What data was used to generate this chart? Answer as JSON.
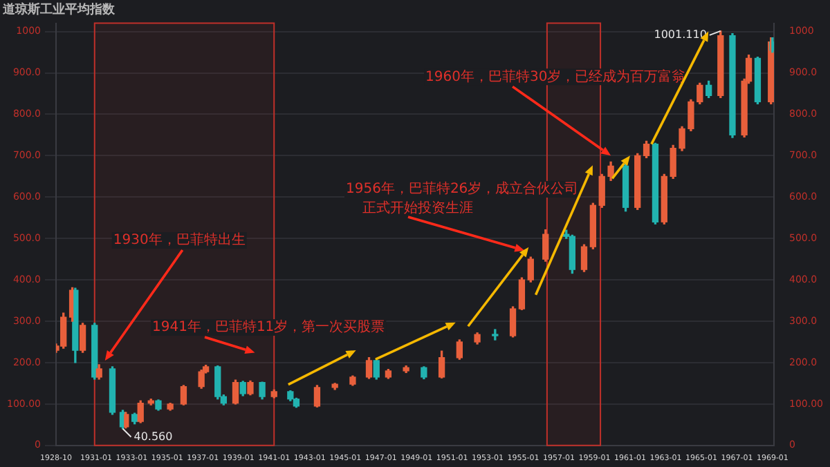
{
  "chart_data": {
    "type": "candlestick",
    "title": "道琼斯工业平均指数",
    "x": [
      "1928-10",
      "1929-03",
      "1929-09",
      "1929-11",
      "1930-04",
      "1930-12",
      "1931-03",
      "1931-12",
      "1932-07",
      "1932-09",
      "1933-03",
      "1933-07",
      "1934-02",
      "1934-07",
      "1935-03",
      "1935-12",
      "1936-12",
      "1937-03",
      "1937-11",
      "1938-03",
      "1938-11",
      "1939-04",
      "1939-09",
      "1940-05",
      "1941-01",
      "1941-12",
      "1942-04",
      "1943-06",
      "1944-06",
      "1945-06",
      "1946-05",
      "1946-10",
      "1947-06",
      "1948-06",
      "1949-06",
      "1950-06",
      "1951-06",
      "1952-06",
      "1953-06",
      "1954-06",
      "1954-12",
      "1955-06",
      "1956-04",
      "1957-06",
      "1957-10",
      "1958-06",
      "1958-12",
      "1959-06",
      "1959-12",
      "1960-10",
      "1961-06",
      "1961-12",
      "1962-06",
      "1962-12",
      "1963-06",
      "1963-12",
      "1964-06",
      "1964-12",
      "1965-06",
      "1966-02",
      "1966-10",
      "1967-06",
      "1967-09",
      "1968-03",
      "1968-12",
      "1969-01"
    ],
    "ohlc": [
      [
        230,
        245,
        225,
        240
      ],
      [
        240,
        320,
        235,
        310
      ],
      [
        310,
        381,
        300,
        375
      ],
      [
        375,
        380,
        200,
        230
      ],
      [
        230,
        295,
        225,
        290
      ],
      [
        290,
        295,
        160,
        165
      ],
      [
        165,
        195,
        160,
        185
      ],
      [
        185,
        190,
        75,
        80
      ],
      [
        80,
        85,
        40.56,
        45
      ],
      [
        45,
        80,
        42,
        75
      ],
      [
        75,
        78,
        52,
        58
      ],
      [
        58,
        108,
        55,
        102
      ],
      [
        102,
        112,
        98,
        108
      ],
      [
        108,
        110,
        85,
        88
      ],
      [
        88,
        102,
        85,
        100
      ],
      [
        100,
        145,
        98,
        142
      ],
      [
        142,
        182,
        138,
        178
      ],
      [
        178,
        194,
        175,
        190
      ],
      [
        190,
        192,
        112,
        118
      ],
      [
        118,
        122,
        98,
        102
      ],
      [
        102,
        158,
        100,
        152
      ],
      [
        152,
        155,
        120,
        125
      ],
      [
        125,
        156,
        122,
        152
      ],
      [
        152,
        153,
        112,
        118
      ],
      [
        118,
        134,
        115,
        130
      ],
      [
        130,
        132,
        108,
        112
      ],
      [
        112,
        114,
        92,
        95
      ],
      [
        95,
        145,
        93,
        140
      ],
      [
        140,
        150,
        135,
        148
      ],
      [
        148,
        168,
        145,
        165
      ],
      [
        165,
        212,
        162,
        205
      ],
      [
        205,
        207,
        160,
        165
      ],
      [
        165,
        184,
        162,
        180
      ],
      [
        180,
        192,
        176,
        188
      ],
      [
        188,
        190,
        161,
        165
      ],
      [
        165,
        228,
        163,
        212
      ],
      [
        212,
        255,
        208,
        250
      ],
      [
        250,
        272,
        245,
        268
      ],
      [
        268,
        280,
        255,
        265
      ],
      [
        265,
        335,
        262,
        330
      ],
      [
        330,
        405,
        328,
        400
      ],
      [
        400,
        455,
        395,
        450
      ],
      [
        450,
        521,
        445,
        510
      ],
      [
        510,
        520,
        500,
        505
      ],
      [
        505,
        508,
        416,
        425
      ],
      [
        425,
        485,
        420,
        480
      ],
      [
        480,
        585,
        475,
        580
      ],
      [
        580,
        655,
        575,
        650
      ],
      [
        650,
        685,
        640,
        675
      ],
      [
        675,
        680,
        566,
        575
      ],
      [
        575,
        705,
        570,
        700
      ],
      [
        700,
        735,
        695,
        728
      ],
      [
        728,
        730,
        535,
        540
      ],
      [
        540,
        655,
        535,
        650
      ],
      [
        650,
        725,
        645,
        718
      ],
      [
        718,
        770,
        712,
        765
      ],
      [
        765,
        835,
        760,
        830
      ],
      [
        830,
        875,
        825,
        870
      ],
      [
        870,
        880,
        840,
        845
      ],
      [
        845,
        1001.11,
        840,
        990
      ],
      [
        990,
        995,
        744,
        750
      ],
      [
        750,
        885,
        745,
        880
      ],
      [
        880,
        943,
        875,
        935
      ],
      [
        935,
        938,
        825,
        830
      ],
      [
        830,
        985,
        825,
        975
      ],
      [
        975,
        985,
        950,
        955
      ]
    ],
    "xlim": [
      "1928-10",
      "1969-02"
    ],
    "xticks": [
      "1928-10",
      "1931-01",
      "1933-01",
      "1935-01",
      "1937-01",
      "1939-01",
      "1941-01",
      "1943-01",
      "1945-01",
      "1947-01",
      "1949-01",
      "1951-01",
      "1953-01",
      "1955-01",
      "1957-01",
      "1959-01",
      "1961-01",
      "1963-01",
      "1965-01",
      "1967-01",
      "1969-01"
    ],
    "ylim": [
      0,
      1020
    ],
    "yticks": [
      0,
      {
        "value": 100,
        "label": "100.00"
      },
      {
        "value": 200,
        "label": "200.0"
      },
      {
        "value": 300,
        "label": "300.0"
      },
      {
        "value": 400,
        "label": "400.0"
      },
      {
        "value": 500,
        "label": "500.0"
      },
      {
        "value": 600,
        "label": "600.0"
      },
      {
        "value": 700,
        "label": "700.0"
      },
      {
        "value": 800,
        "label": "800.0"
      },
      {
        "value": 900,
        "label": "900.0"
      },
      1000
    ],
    "y2lim": [
      0,
      1020
    ],
    "y2ticks": [
      0,
      {
        "value": 100,
        "label": "100.00"
      },
      {
        "value": 200,
        "label": "200.0"
      },
      {
        "value": 300,
        "label": "300.0"
      },
      {
        "value": 400,
        "label": "400.0"
      },
      {
        "value": 500,
        "label": "500.0"
      },
      {
        "value": 600,
        "label": "600.0"
      },
      {
        "value": 700,
        "label": "700.0"
      },
      {
        "value": 800,
        "label": "800.0"
      },
      {
        "value": 900,
        "label": "900.0"
      },
      1000
    ],
    "grid": "y",
    "legend": false,
    "bands": [
      {
        "axis": "x",
        "from": "1930-12",
        "to": "1941-01",
        "color": "#c0302a"
      },
      {
        "axis": "x",
        "from": "1956-05",
        "to": "1959-05",
        "color": "#c0302a"
      }
    ],
    "annotations": [
      {
        "text": "1930年，巴菲特出生",
        "x": "1931-07",
        "y": 205
      },
      "1941年，巴菲特11岁，第一次买股票",
      "1956年，巴菲特26岁，成立合伙公司",
      "正式开始投资生涯",
      {
        "text": "1960年，巴菲特30岁，已经成为百万富翁",
        "x": "1959-12",
        "y": 700
      },
      {
        "text": "1001.110",
        "x": "1966-02",
        "y": 1001.11
      },
      {
        "text": "40.560",
        "x": "1932-07",
        "y": 40.56
      }
    ]
  }
}
